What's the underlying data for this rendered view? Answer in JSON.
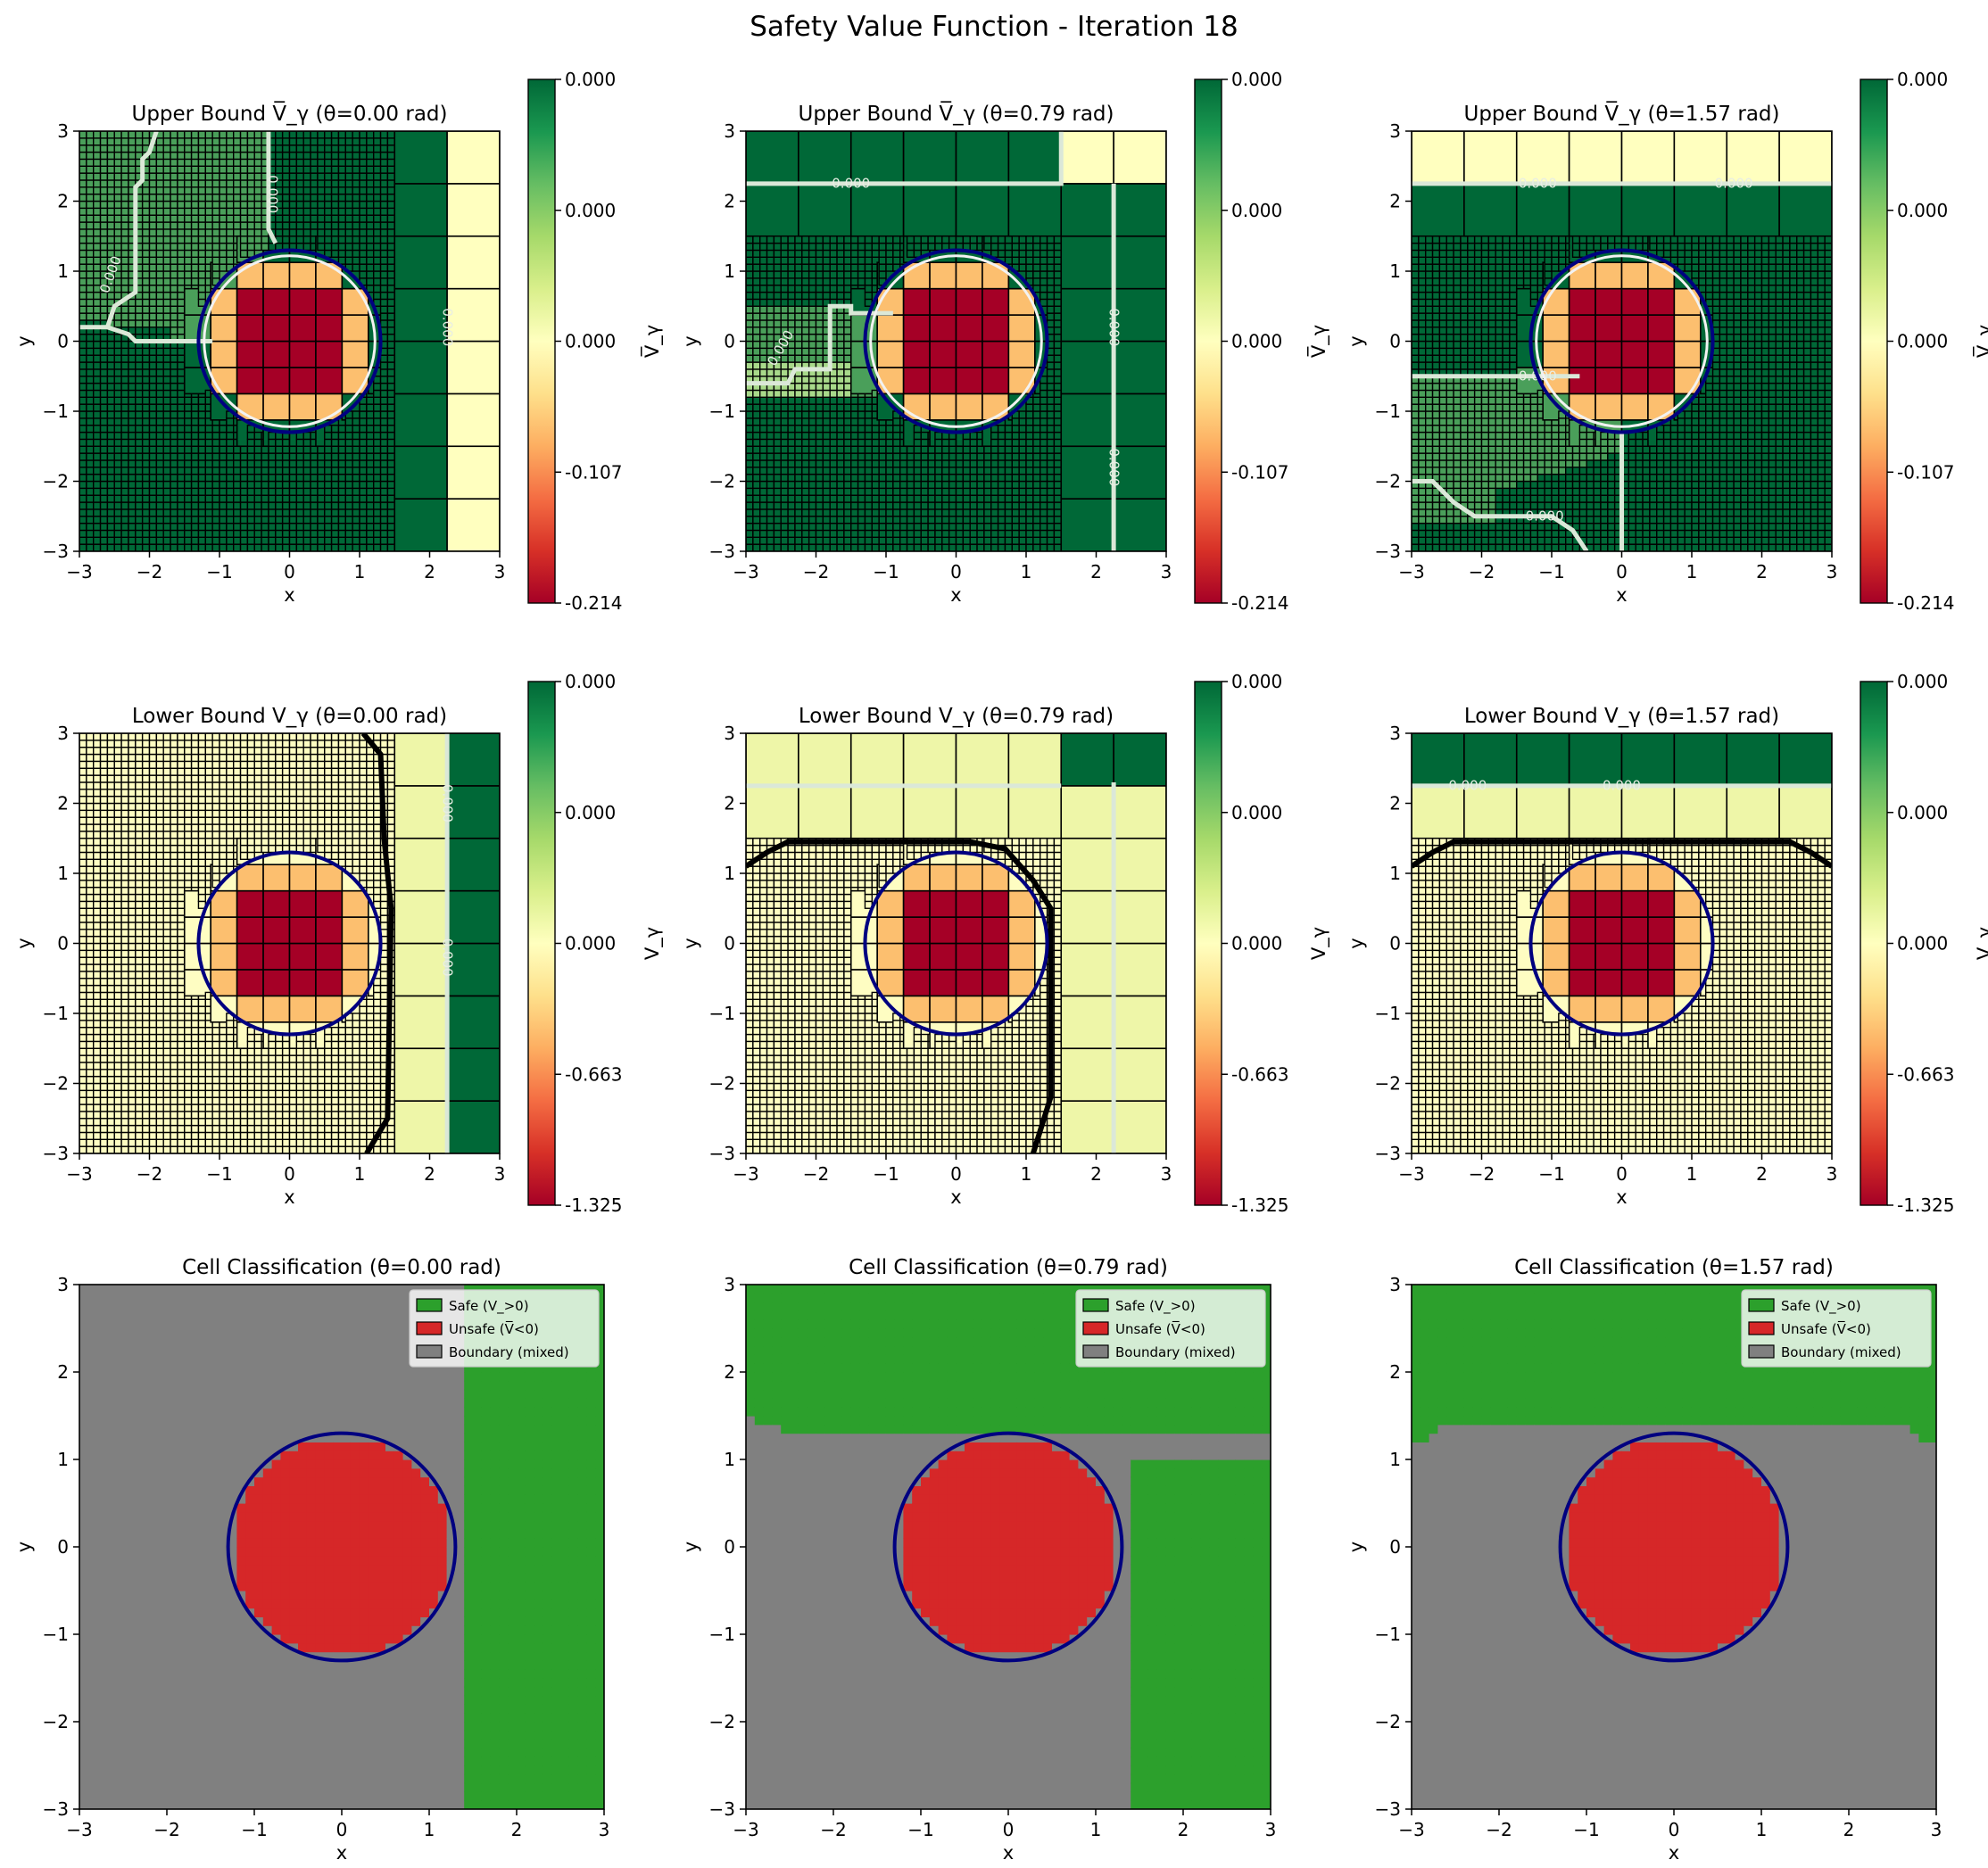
{
  "figure": {
    "suptitle": "Safety Value Function - Iteration 18"
  },
  "colors": {
    "cmap": [
      "#a50026",
      "#d73027",
      "#f46d43",
      "#fdae61",
      "#fee08b",
      "#ffffbf",
      "#d9ef8b",
      "#a6d96a",
      "#66bd63",
      "#1a9850",
      "#006837"
    ],
    "safe": "#2ca02c",
    "unsafe": "#d62728",
    "boundary": "#808080",
    "obstacle_circle": "#000080"
  },
  "obstacle": {
    "center": [
      0,
      0
    ],
    "radius": 1.3
  },
  "chart_data": [
    {
      "type": "heatmap",
      "id": "ub0",
      "row": "upper",
      "theta": 0.0,
      "title": "Upper Bound V̅_γ (θ=0.00 rad)",
      "xlabel": "x",
      "ylabel": "y",
      "cbar_label": "V̅_γ",
      "xlim": [
        -3,
        3
      ],
      "ylim": [
        -3,
        3
      ],
      "xticks": [
        "−3",
        "−2",
        "−1",
        "0",
        "1",
        "2",
        "3"
      ],
      "yticks": [
        "−3",
        "−2",
        "−1",
        "0",
        "1",
        "2",
        "3"
      ],
      "vmin": -0.214,
      "vmax": 0.0,
      "cbar_ticks": [
        "0.000",
        "0.000",
        "0.000",
        "-0.107",
        "-0.214"
      ],
      "contour_labels": [
        "0.000",
        "0.000",
        "0.000"
      ]
    },
    {
      "type": "heatmap",
      "id": "ub1",
      "row": "upper",
      "theta": 0.79,
      "title": "Upper Bound V̅_γ (θ=0.79 rad)",
      "xlabel": "x",
      "ylabel": "y",
      "cbar_label": "V̅_γ",
      "xlim": [
        -3,
        3
      ],
      "ylim": [
        -3,
        3
      ],
      "xticks": [
        "−3",
        "−2",
        "−1",
        "0",
        "1",
        "2",
        "3"
      ],
      "yticks": [
        "−3",
        "−2",
        "−1",
        "0",
        "1",
        "2",
        "3"
      ],
      "vmin": -0.214,
      "vmax": 0.0,
      "cbar_ticks": [
        "0.000",
        "0.000",
        "0.000",
        "-0.107",
        "-0.214"
      ],
      "contour_labels": [
        "0.000",
        "0.000",
        "0.000",
        "0.000"
      ]
    },
    {
      "type": "heatmap",
      "id": "ub2",
      "row": "upper",
      "theta": 1.57,
      "title": "Upper Bound V̅_γ (θ=1.57 rad)",
      "xlabel": "x",
      "ylabel": "y",
      "cbar_label": "V̅_γ",
      "xlim": [
        -3,
        3
      ],
      "ylim": [
        -3,
        3
      ],
      "xticks": [
        "−3",
        "−2",
        "−1",
        "0",
        "1",
        "2",
        "3"
      ],
      "yticks": [
        "−3",
        "−2",
        "−1",
        "0",
        "1",
        "2",
        "3"
      ],
      "vmin": -0.214,
      "vmax": 0.0,
      "cbar_ticks": [
        "0.000",
        "0.000",
        "0.000",
        "-0.107",
        "-0.214"
      ],
      "contour_labels": [
        "0.000",
        "0.000",
        "0.000",
        "0.000"
      ]
    },
    {
      "type": "heatmap",
      "id": "lb0",
      "row": "lower",
      "theta": 0.0,
      "title": "Lower Bound V_γ (θ=0.00 rad)",
      "xlabel": "x",
      "ylabel": "y",
      "cbar_label": "V_γ",
      "xlim": [
        -3,
        3
      ],
      "ylim": [
        -3,
        3
      ],
      "xticks": [
        "−3",
        "−2",
        "−1",
        "0",
        "1",
        "2",
        "3"
      ],
      "yticks": [
        "−3",
        "−2",
        "−1",
        "0",
        "1",
        "2",
        "3"
      ],
      "vmin": -1.325,
      "vmax": 0.0,
      "cbar_ticks": [
        "0.000",
        "0.000",
        "0.000",
        "-0.663",
        "-1.325"
      ],
      "contour_labels": [
        "0.000",
        "0.000"
      ]
    },
    {
      "type": "heatmap",
      "id": "lb1",
      "row": "lower",
      "theta": 0.79,
      "title": "Lower Bound V_γ (θ=0.79 rad)",
      "xlabel": "x",
      "ylabel": "y",
      "cbar_label": "V_γ",
      "xlim": [
        -3,
        3
      ],
      "ylim": [
        -3,
        3
      ],
      "xticks": [
        "−3",
        "−2",
        "−1",
        "0",
        "1",
        "2",
        "3"
      ],
      "yticks": [
        "−3",
        "−2",
        "−1",
        "0",
        "1",
        "2",
        "3"
      ],
      "vmin": -1.325,
      "vmax": 0.0,
      "cbar_ticks": [
        "0.000",
        "0.000",
        "0.000",
        "-0.663",
        "-1.325"
      ],
      "contour_labels": []
    },
    {
      "type": "heatmap",
      "id": "lb2",
      "row": "lower",
      "theta": 1.57,
      "title": "Lower Bound V_γ (θ=1.57 rad)",
      "xlabel": "x",
      "ylabel": "y",
      "cbar_label": "V_γ",
      "xlim": [
        -3,
        3
      ],
      "ylim": [
        -3,
        3
      ],
      "xticks": [
        "−3",
        "−2",
        "−1",
        "0",
        "1",
        "2",
        "3"
      ],
      "yticks": [
        "−3",
        "−2",
        "−1",
        "0",
        "1",
        "2",
        "3"
      ],
      "vmin": -1.325,
      "vmax": 0.0,
      "cbar_ticks": [
        "0.000",
        "0.000",
        "0.000",
        "-0.663",
        "-1.325"
      ],
      "contour_labels": [
        "0.000",
        "0.000"
      ]
    },
    {
      "type": "heatmap",
      "id": "cls0",
      "row": "class",
      "theta": 0.0,
      "title": "Cell Classification (θ=0.00 rad)",
      "xlabel": "x",
      "ylabel": "y",
      "xlim": [
        -3,
        3
      ],
      "ylim": [
        -3,
        3
      ],
      "xticks": [
        "−3",
        "−2",
        "−1",
        "0",
        "1",
        "2",
        "3"
      ],
      "yticks": [
        "−3",
        "−2",
        "−1",
        "0",
        "1",
        "2",
        "3"
      ],
      "legend": [
        "Safe (V_>0)",
        "Unsafe (V̅<0)",
        "Boundary (mixed)"
      ],
      "legend_loc": "upper right"
    },
    {
      "type": "heatmap",
      "id": "cls1",
      "row": "class",
      "theta": 0.79,
      "title": "Cell Classification (θ=0.79 rad)",
      "xlabel": "x",
      "ylabel": "y",
      "xlim": [
        -3,
        3
      ],
      "ylim": [
        -3,
        3
      ],
      "xticks": [
        "−3",
        "−2",
        "−1",
        "0",
        "1",
        "2",
        "3"
      ],
      "yticks": [
        "−3",
        "−2",
        "−1",
        "0",
        "1",
        "2",
        "3"
      ],
      "legend": [
        "Safe (V_>0)",
        "Unsafe (V̅<0)",
        "Boundary (mixed)"
      ],
      "legend_loc": "upper right"
    },
    {
      "type": "heatmap",
      "id": "cls2",
      "row": "class",
      "theta": 1.57,
      "title": "Cell Classification (θ=1.57 rad)",
      "xlabel": "x",
      "ylabel": "y",
      "xlim": [
        -3,
        3
      ],
      "ylim": [
        -3,
        3
      ],
      "xticks": [
        "−3",
        "−2",
        "−1",
        "0",
        "1",
        "2",
        "3"
      ],
      "yticks": [
        "−3",
        "−2",
        "−1",
        "0",
        "1",
        "2",
        "3"
      ],
      "legend": [
        "Safe (V_>0)",
        "Unsafe (V̅<0)",
        "Boundary (mixed)"
      ],
      "legend_loc": "upper right"
    }
  ]
}
